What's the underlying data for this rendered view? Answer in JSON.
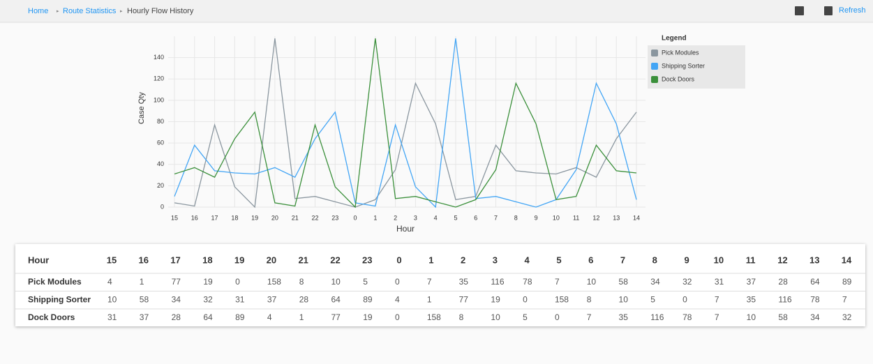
{
  "breadcrumb": [
    "Home",
    "Route Statistics",
    "Hourly Flow History"
  ],
  "toolbar": {
    "refresh": "Refresh"
  },
  "chart_data": {
    "type": "line",
    "x_label": "Hour",
    "y_label": "Case Qty",
    "categories": [
      "15",
      "16",
      "17",
      "18",
      "19",
      "20",
      "21",
      "22",
      "23",
      "0",
      "1",
      "2",
      "3",
      "4",
      "5",
      "6",
      "7",
      "8",
      "9",
      "10",
      "11",
      "12",
      "13",
      "14"
    ],
    "series": [
      {
        "name": "Pick Modules",
        "color": "#8a969f",
        "values": [
          4,
          1,
          77,
          19,
          0,
          158,
          8,
          10,
          5,
          0,
          7,
          35,
          116,
          78,
          7,
          10,
          58,
          34,
          32,
          31,
          37,
          28,
          64,
          89
        ]
      },
      {
        "name": "Shipping Sorter",
        "color": "#42a5f5",
        "values": [
          10,
          58,
          34,
          32,
          31,
          37,
          28,
          64,
          89,
          4,
          1,
          77,
          19,
          0,
          158,
          8,
          10,
          5,
          0,
          7,
          35,
          116,
          78,
          7
        ]
      },
      {
        "name": "Dock Doors",
        "color": "#3a8f3a",
        "values": [
          31,
          37,
          28,
          64,
          89,
          4,
          1,
          77,
          19,
          0,
          158,
          8,
          10,
          5,
          0,
          7,
          35,
          116,
          78,
          7,
          10,
          58,
          34,
          32
        ]
      }
    ],
    "ylim": [
      0,
      160
    ],
    "yticks": [
      0,
      20,
      40,
      60,
      80,
      100,
      120,
      140
    ],
    "grid": true,
    "legend_title": "Legend",
    "legend": "right"
  }
}
